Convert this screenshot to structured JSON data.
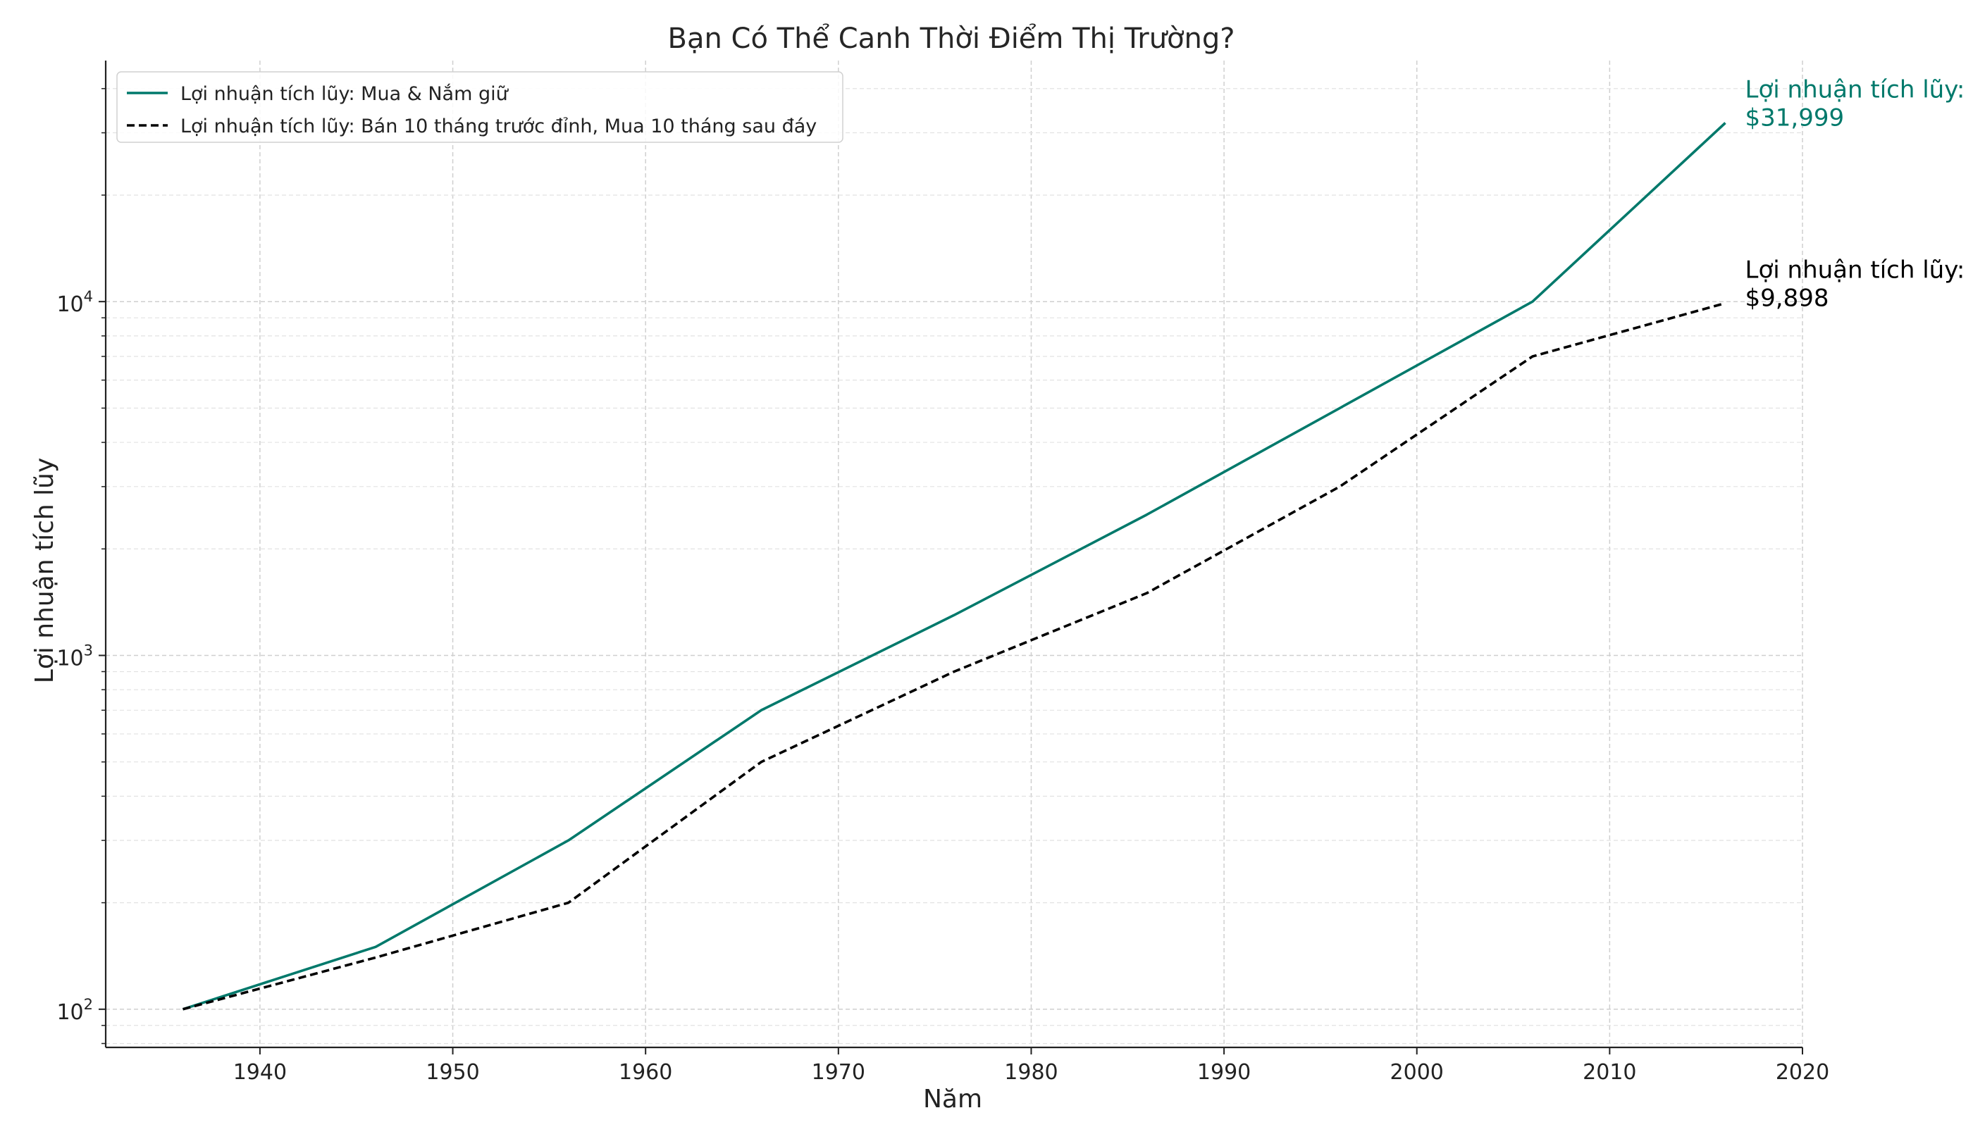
{
  "chart_data": {
    "type": "line",
    "title": "Bạn Có Thể Canh Thời Điểm Thị Trường?",
    "xlabel": "Năm",
    "ylabel": "Lợi nhuận tích lũy",
    "yscale": "log",
    "xlim": [
      1932,
      2020
    ],
    "ylim": [
      78,
      48000
    ],
    "x_ticks": [
      1940,
      1950,
      1960,
      1970,
      1980,
      1990,
      2000,
      2010,
      2020
    ],
    "y_ticks": [
      {
        "base": "10",
        "exp": "2",
        "value": 100
      },
      {
        "base": "10",
        "exp": "3",
        "value": 1000
      },
      {
        "base": "10",
        "exp": "4",
        "value": 10000
      }
    ],
    "grid": true,
    "legend_position": "top-left",
    "series": [
      {
        "name": "Lợi nhuận tích lũy: Mua & Nắm giữ",
        "color": "#00796b",
        "style": "solid",
        "x": [
          1936,
          1946,
          1956,
          1966,
          1976,
          1986,
          1996,
          2006,
          2016
        ],
        "y": [
          100,
          150,
          300,
          700,
          1300,
          2500,
          5000,
          10000,
          31999
        ]
      },
      {
        "name": "Lợi nhuận tích lũy: Bán 10 tháng trước đỉnh, Mua 10 tháng sau đáy",
        "color": "#000000",
        "style": "dashed",
        "x": [
          1936,
          1946,
          1956,
          1966,
          1976,
          1986,
          1996,
          2006,
          2016
        ],
        "y": [
          100,
          140,
          200,
          500,
          900,
          1500,
          3000,
          7000,
          9898
        ]
      }
    ],
    "annotations": [
      {
        "line1": "Lợi nhuận tích lũy:",
        "line2": "$31,999",
        "x": 2016,
        "y": 31999,
        "color": "#00796b"
      },
      {
        "line1": "Lợi nhuận tích lũy:",
        "line2": "$9,898",
        "x": 2016,
        "y": 9898,
        "color": "#000000"
      }
    ]
  }
}
